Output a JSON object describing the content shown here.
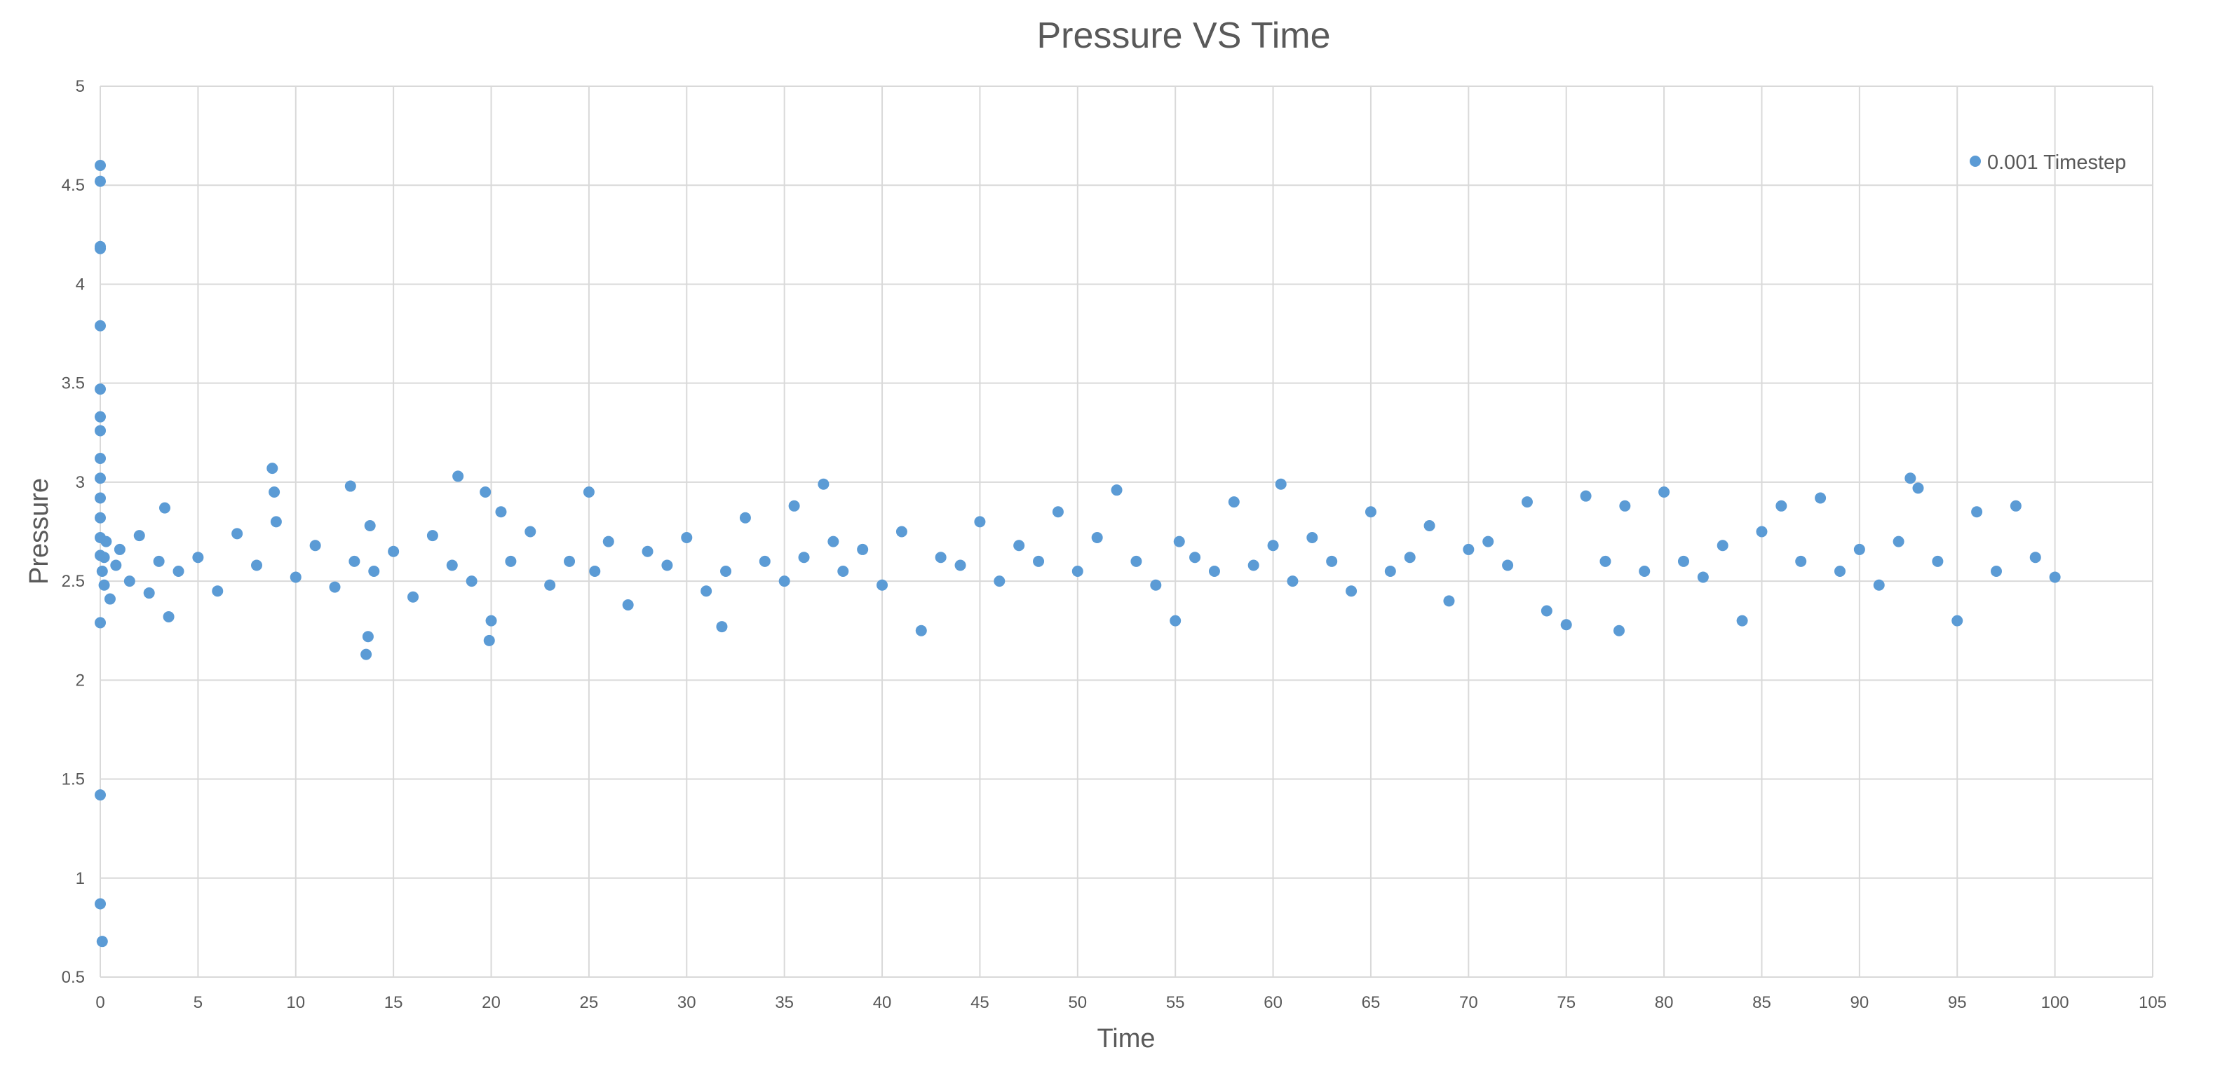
{
  "chart_data": {
    "type": "scatter",
    "title": "Pressure VS Time",
    "xlabel": "Time",
    "ylabel": "Pressure",
    "xlim": [
      0,
      105
    ],
    "ylim": [
      0.5,
      5
    ],
    "xticks": [
      0,
      5,
      10,
      15,
      20,
      25,
      30,
      35,
      40,
      45,
      50,
      55,
      60,
      65,
      70,
      75,
      80,
      85,
      90,
      95,
      100,
      105
    ],
    "yticks": [
      0.5,
      1,
      1.5,
      2,
      2.5,
      3,
      3.5,
      4,
      4.5,
      5
    ],
    "grid": true,
    "legend_position": "top-right",
    "series_color": "#5b9bd5",
    "series": [
      {
        "name": "0.001 Timestep",
        "x": [
          0,
          0,
          0,
          0,
          0,
          0,
          0,
          0,
          0,
          0,
          0,
          0,
          0,
          0,
          0,
          0,
          0,
          0.1,
          0.1,
          0.2,
          0.2,
          0.3,
          0.5,
          0.8,
          1.0,
          1.5,
          2.0,
          2.5,
          3.0,
          3.3,
          3.5,
          4.0,
          5.0,
          6.0,
          7.0,
          8.0,
          8.8,
          8.9,
          9.0,
          10.0,
          11.0,
          12.0,
          12.8,
          13.0,
          13.6,
          13.7,
          13.8,
          14.0,
          15.0,
          16.0,
          17.0,
          18.0,
          18.3,
          19.0,
          19.7,
          19.9,
          20.0,
          20.5,
          21.0,
          22.0,
          23.0,
          24.0,
          25.0,
          25.3,
          26.0,
          27.0,
          28.0,
          29.0,
          30.0,
          31.0,
          31.8,
          32.0,
          33.0,
          34.0,
          35.0,
          35.5,
          36.0,
          37.0,
          37.5,
          38.0,
          39.0,
          40.0,
          41.0,
          42.0,
          43.0,
          44.0,
          45.0,
          46.0,
          47.0,
          48.0,
          49.0,
          50.0,
          51.0,
          52.0,
          53.0,
          54.0,
          55.0,
          55.2,
          56.0,
          57.0,
          58.0,
          59.0,
          60.0,
          60.4,
          61.0,
          62.0,
          63.0,
          64.0,
          65.0,
          66.0,
          67.0,
          68.0,
          69.0,
          70.0,
          71.0,
          72.0,
          73.0,
          74.0,
          75.0,
          76.0,
          77.0,
          77.7,
          78.0,
          79.0,
          80.0,
          81.0,
          82.0,
          83.0,
          84.0,
          85.0,
          86.0,
          87.0,
          88.0,
          89.0,
          90.0,
          91.0,
          92.0,
          92.6,
          93.0,
          94.0,
          95.0,
          96.0,
          97.0,
          98.0,
          99.0,
          100.0
        ],
        "y": [
          4.6,
          4.52,
          4.19,
          4.18,
          3.79,
          3.47,
          3.33,
          3.26,
          3.12,
          3.02,
          2.92,
          2.82,
          2.72,
          2.63,
          2.29,
          1.42,
          0.87,
          0.68,
          2.55,
          2.62,
          2.48,
          2.7,
          2.41,
          2.58,
          2.66,
          2.5,
          2.73,
          2.44,
          2.6,
          2.87,
          2.32,
          2.55,
          2.62,
          2.45,
          2.74,
          2.58,
          3.07,
          2.95,
          2.8,
          2.52,
          2.68,
          2.47,
          2.98,
          2.6,
          2.13,
          2.22,
          2.78,
          2.55,
          2.65,
          2.42,
          2.73,
          2.58,
          3.03,
          2.5,
          2.95,
          2.2,
          2.3,
          2.85,
          2.6,
          2.75,
          2.48,
          2.6,
          2.95,
          2.55,
          2.7,
          2.38,
          2.65,
          2.58,
          2.72,
          2.45,
          2.27,
          2.55,
          2.82,
          2.6,
          2.5,
          2.88,
          2.62,
          2.99,
          2.7,
          2.55,
          2.66,
          2.48,
          2.75,
          2.25,
          2.62,
          2.58,
          2.8,
          2.5,
          2.68,
          2.6,
          2.85,
          2.55,
          2.72,
          2.96,
          2.6,
          2.48,
          2.3,
          2.7,
          2.62,
          2.55,
          2.9,
          2.58,
          2.68,
          2.99,
          2.5,
          2.72,
          2.6,
          2.45,
          2.85,
          2.55,
          2.62,
          2.78,
          2.4,
          2.66,
          2.7,
          2.58,
          2.9,
          2.35,
          2.28,
          2.93,
          2.6,
          2.25,
          2.88,
          2.55,
          2.95,
          2.6,
          2.52,
          2.68,
          2.3,
          2.75,
          2.88,
          2.6,
          2.92,
          2.55,
          2.66,
          2.48,
          2.7,
          3.02,
          2.97,
          2.6,
          2.3,
          2.85,
          2.55,
          2.88,
          2.62,
          2.52
        ]
      }
    ]
  }
}
